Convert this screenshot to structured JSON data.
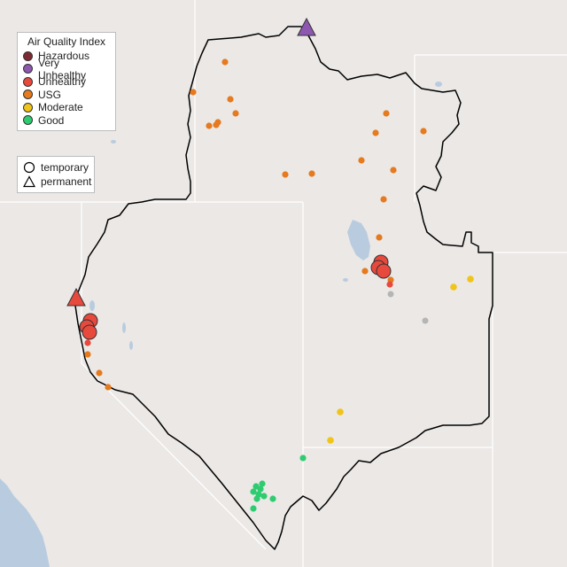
{
  "legend": {
    "title": "Air Quality Index",
    "categories": [
      {
        "label": "Hazardous",
        "color": "#7e2a32"
      },
      {
        "label": "Very Unhealthy",
        "color": "#8e58b0"
      },
      {
        "label": "Unhealthy",
        "color": "#e8493d"
      },
      {
        "label": "USG",
        "color": "#e57a1e"
      },
      {
        "label": "Moderate",
        "color": "#f0c419"
      },
      {
        "label": "Good",
        "color": "#2ecc71"
      }
    ],
    "monitor_types": [
      {
        "label": "temporary",
        "shape": "circle"
      },
      {
        "label": "permanent",
        "shape": "triangle"
      }
    ]
  },
  "map_styles": {
    "basemap": "terrain-gray",
    "water": "#b9ccdf",
    "region_outline": "#000000",
    "state_lines": "#ffffff",
    "missing_data": "#b5b5b5"
  }
}
